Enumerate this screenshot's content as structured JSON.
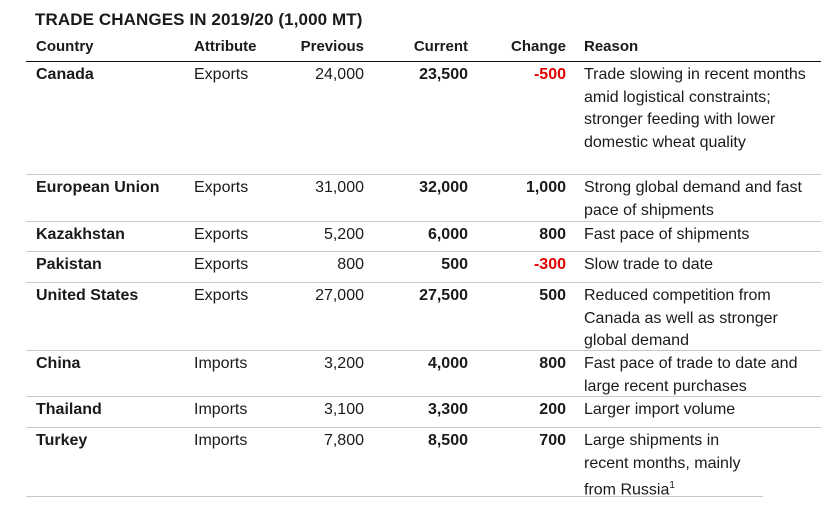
{
  "title": "TRADE CHANGES IN 2019/20 (1,000 MT)",
  "headers": {
    "country": "Country",
    "attribute": "Attribute",
    "previous": "Previous",
    "current": "Current",
    "change": "Change",
    "reason": "Reason"
  },
  "rows": [
    {
      "country": "Canada",
      "attribute": "Exports",
      "previous": "24,000",
      "current": "23,500",
      "change": "-500",
      "reason": "Trade slowing in recent months amid logistical constraints; stronger feeding with lower domestic wheat quality"
    },
    {
      "country": "European Union",
      "attribute": "Exports",
      "previous": "31,000",
      "current": "32,000",
      "change": "1,000",
      "reason": "Strong global demand and fast pace of shipments"
    },
    {
      "country": "Kazakhstan",
      "attribute": "Exports",
      "previous": "5,200",
      "current": "6,000",
      "change": "800",
      "reason": "Fast pace of shipments"
    },
    {
      "country": "Pakistan",
      "attribute": "Exports",
      "previous": "800",
      "current": "500",
      "change": "-300",
      "reason": "Slow trade to date"
    },
    {
      "country": "United States",
      "attribute": "Exports",
      "previous": "27,000",
      "current": "27,500",
      "change": "500",
      "reason": "Reduced competition from Canada as well as stronger global demand"
    },
    {
      "country": "China",
      "attribute": "Imports",
      "previous": "3,200",
      "current": "4,000",
      "change": "800",
      "reason": "Fast pace of trade to date and large recent purchases"
    },
    {
      "country": "Thailand",
      "attribute": "Imports",
      "previous": "3,100",
      "current": "3,300",
      "change": "200",
      "reason": "Larger import volume"
    },
    {
      "country": "Turkey",
      "attribute": "Imports",
      "previous": "7,800",
      "current": "8,500",
      "change": "700",
      "reason": "Large shipments in recent months, mainly from Russia",
      "reason_footnote": "1"
    }
  ],
  "colors": {
    "negative_change": "#e00000"
  }
}
